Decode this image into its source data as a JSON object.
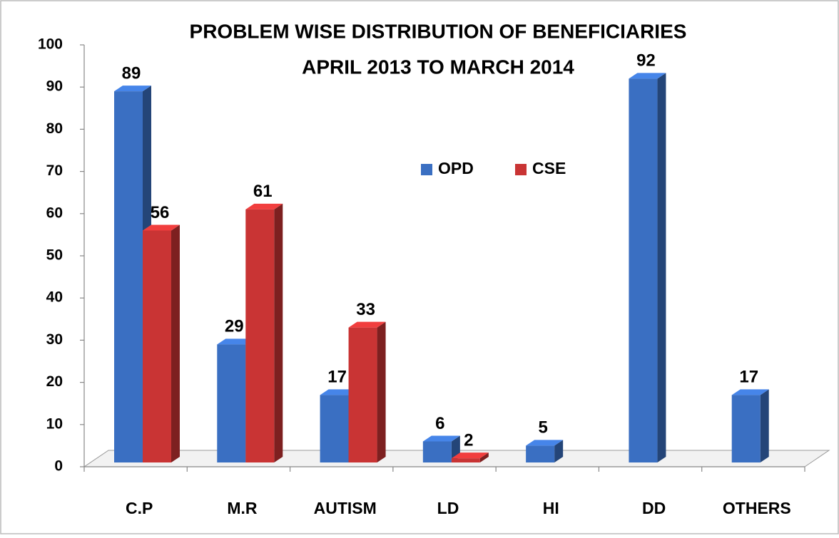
{
  "chart_data": {
    "type": "bar3d",
    "title": "PROBLEM WISE DISTRIBUTION OF BENEFICIARIES",
    "subtitle": "APRIL 2013 TO MARCH  2014",
    "categories": [
      "C.P",
      "M.R",
      "AUTISM",
      "LD",
      "HI",
      "DD",
      "OTHERS"
    ],
    "series": [
      {
        "name": "OPD",
        "color": "#3a6fc2",
        "values": [
          89,
          29,
          17,
          6,
          5,
          92,
          17
        ]
      },
      {
        "name": "CSE",
        "color": "#c93434",
        "values": [
          56,
          61,
          33,
          2,
          null,
          null,
          null
        ]
      }
    ],
    "ylim": [
      0,
      100
    ],
    "yticks": [
      0,
      10,
      20,
      30,
      40,
      50,
      60,
      70,
      80,
      90,
      100
    ],
    "legend": "center"
  }
}
